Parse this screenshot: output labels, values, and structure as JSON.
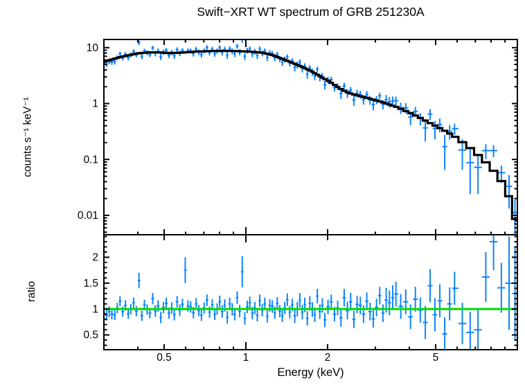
{
  "chart_data": {
    "type": "scatter",
    "title": "Swift−XRT WT spectrum of GRB 251230A",
    "xlabel": "Energy (keV)",
    "x_scale": "log",
    "x_range": [
      0.3,
      10
    ],
    "x_major_ticks": [
      {
        "value": 0.5,
        "label": "0.5"
      },
      {
        "value": 1,
        "label": "1"
      },
      {
        "value": 2,
        "label": "2"
      },
      {
        "value": 5,
        "label": "5"
      }
    ],
    "x_minor_ticks": [
      0.4,
      0.6,
      0.7,
      0.8,
      0.9,
      3,
      4,
      6,
      7,
      8,
      9
    ],
    "legend": "none",
    "grid": "off",
    "panels": {
      "spectrum": {
        "ylabel": "counts s⁻¹ keV⁻¹",
        "y_scale": "log",
        "y_range": [
          0.0045,
          14
        ],
        "y_major_ticks": [
          {
            "value": 10,
            "label": "10"
          },
          {
            "value": 1,
            "label": "1"
          },
          {
            "value": 0.1,
            "label": "0.1"
          },
          {
            "value": 0.01,
            "label": "0.01"
          }
        ],
        "data_color": "#0D84FF",
        "model_color": "#000000",
        "model_curve": [
          [
            0.3,
            5.6
          ],
          [
            0.35,
            6.9
          ],
          [
            0.4,
            7.9
          ],
          [
            0.44,
            8.25
          ],
          [
            0.48,
            8.2
          ],
          [
            0.52,
            8.0
          ],
          [
            0.57,
            8.1
          ],
          [
            0.65,
            8.5
          ],
          [
            0.75,
            8.7
          ],
          [
            0.85,
            8.75
          ],
          [
            0.95,
            8.65
          ],
          [
            1.05,
            8.45
          ],
          [
            1.15,
            8.1
          ],
          [
            1.25,
            7.4
          ],
          [
            1.35,
            6.4
          ],
          [
            1.45,
            5.6
          ],
          [
            1.55,
            4.9
          ],
          [
            1.65,
            4.3
          ],
          [
            1.75,
            3.75
          ],
          [
            1.85,
            3.2
          ],
          [
            1.95,
            2.75
          ],
          [
            2.05,
            2.4
          ],
          [
            2.15,
            2.05
          ],
          [
            2.25,
            1.8
          ],
          [
            2.35,
            1.6
          ],
          [
            2.5,
            1.45
          ],
          [
            2.7,
            1.32
          ],
          [
            2.9,
            1.2
          ],
          [
            3.1,
            1.1
          ],
          [
            3.3,
            1.0
          ],
          [
            3.55,
            0.88
          ],
          [
            3.8,
            0.77
          ],
          [
            4.1,
            0.65
          ],
          [
            4.4,
            0.55
          ],
          [
            4.8,
            0.44
          ],
          [
            5.2,
            0.36
          ],
          [
            5.6,
            0.295
          ],
          [
            6.1,
            0.225
          ],
          [
            6.6,
            0.17
          ],
          [
            7.1,
            0.125
          ],
          [
            7.6,
            0.092
          ],
          [
            8.1,
            0.066
          ],
          [
            8.6,
            0.046
          ],
          [
            9.1,
            0.03
          ],
          [
            9.55,
            0.016
          ],
          [
            9.9,
            0.0068
          ]
        ]
      },
      "ratio": {
        "ylabel": "ratio",
        "y_scale": "linear",
        "y_range": [
          0.215,
          2.435
        ],
        "y_major_ticks": [
          {
            "value": 0.5,
            "label": "0.5"
          },
          {
            "value": 1,
            "label": "1"
          },
          {
            "value": 1.5,
            "label": "1.5"
          },
          {
            "value": 2,
            "label": "2"
          }
        ],
        "data_color": "#0D84FF",
        "reference_line": {
          "value": 1,
          "color": "#00DF00"
        }
      }
    },
    "bins_format": [
      "energy_keV",
      "ratio_data_over_model",
      "relative_error"
    ],
    "bins": [
      [
        0.3,
        0.92,
        0.1
      ],
      [
        0.307,
        0.88,
        0.1
      ],
      [
        0.314,
        0.95,
        0.1
      ],
      [
        0.321,
        0.9,
        0.1
      ],
      [
        0.329,
        0.89,
        0.1
      ],
      [
        0.336,
        1.02,
        0.1
      ],
      [
        0.344,
        1.15,
        0.1
      ],
      [
        0.352,
        0.95,
        0.1
      ],
      [
        0.36,
        1.07,
        0.1
      ],
      [
        0.369,
        0.91,
        0.1
      ],
      [
        0.377,
        1.0,
        0.1
      ],
      [
        0.386,
        1.12,
        0.1
      ],
      [
        0.395,
        0.96,
        0.1
      ],
      [
        0.404,
        1.55,
        0.15
      ],
      [
        0.414,
        0.87,
        0.1
      ],
      [
        0.423,
        1.08,
        0.1
      ],
      [
        0.433,
        0.99,
        0.1
      ],
      [
        0.443,
        0.92,
        0.1
      ],
      [
        0.454,
        1.2,
        0.11
      ],
      [
        0.464,
        0.96,
        0.11
      ],
      [
        0.475,
        1.06,
        0.11
      ],
      [
        0.486,
        0.84,
        0.11
      ],
      [
        0.497,
        1.03,
        0.11
      ],
      [
        0.509,
        1.11,
        0.11
      ],
      [
        0.521,
        0.92,
        0.11
      ],
      [
        0.533,
        1.02,
        0.11
      ],
      [
        0.545,
        0.89,
        0.11
      ],
      [
        0.558,
        1.14,
        0.11
      ],
      [
        0.571,
        0.98,
        0.11
      ],
      [
        0.584,
        1.09,
        0.11
      ],
      [
        0.598,
        1.75,
        0.25
      ],
      [
        0.612,
        1.06,
        0.11
      ],
      [
        0.626,
        1.04,
        0.11
      ],
      [
        0.641,
        0.93,
        0.11
      ],
      [
        0.656,
        1.1,
        0.11
      ],
      [
        0.671,
        0.97,
        0.11
      ],
      [
        0.686,
        0.88,
        0.11
      ],
      [
        0.702,
        1.02,
        0.11
      ],
      [
        0.719,
        1.17,
        0.11
      ],
      [
        0.735,
        0.94,
        0.11
      ],
      [
        0.752,
        1.08,
        0.11
      ],
      [
        0.768,
        0.9,
        0.11
      ],
      [
        0.784,
        1.0,
        0.11
      ],
      [
        0.801,
        1.14,
        0.12
      ],
      [
        0.818,
        0.95,
        0.12
      ],
      [
        0.836,
        1.07,
        0.12
      ],
      [
        0.854,
        0.84,
        0.12
      ],
      [
        0.872,
        1.1,
        0.12
      ],
      [
        0.891,
        0.99,
        0.12
      ],
      [
        0.91,
        0.9,
        0.12
      ],
      [
        0.929,
        1.22,
        0.12
      ],
      [
        0.949,
        0.96,
        0.12
      ],
      [
        0.97,
        1.72,
        0.3
      ],
      [
        0.991,
        0.82,
        0.12
      ],
      [
        1.012,
        1.04,
        0.12
      ],
      [
        1.034,
        1.12,
        0.12
      ],
      [
        1.056,
        0.92,
        0.12
      ],
      [
        1.079,
        1.02,
        0.12
      ],
      [
        1.102,
        0.88,
        0.12
      ],
      [
        1.125,
        1.16,
        0.12
      ],
      [
        1.149,
        0.98,
        0.12
      ],
      [
        1.174,
        1.1,
        0.12
      ],
      [
        1.199,
        0.86,
        0.12
      ],
      [
        1.225,
        1.07,
        0.12
      ],
      [
        1.251,
        1.05,
        0.12
      ],
      [
        1.278,
        0.93,
        0.12
      ],
      [
        1.305,
        1.11,
        0.12
      ],
      [
        1.333,
        0.96,
        0.12
      ],
      [
        1.362,
        0.87,
        0.12
      ],
      [
        1.391,
        1.02,
        0.12
      ],
      [
        1.421,
        1.18,
        0.12
      ],
      [
        1.451,
        0.94,
        0.12
      ],
      [
        1.482,
        1.08,
        0.12
      ],
      [
        1.514,
        0.87,
        0.14
      ],
      [
        1.547,
        1.0,
        0.14
      ],
      [
        1.58,
        1.17,
        0.14
      ],
      [
        1.614,
        0.94,
        0.14
      ],
      [
        1.648,
        1.08,
        0.14
      ],
      [
        1.684,
        0.82,
        0.14
      ],
      [
        1.72,
        1.11,
        0.14
      ],
      [
        1.757,
        0.99,
        0.14
      ],
      [
        1.794,
        0.89,
        0.14
      ],
      [
        1.833,
        1.25,
        0.14
      ],
      [
        1.872,
        0.95,
        0.14
      ],
      [
        1.912,
        1.07,
        0.14
      ],
      [
        1.953,
        0.79,
        0.14
      ],
      [
        2.007,
        1.04,
        0.14
      ],
      [
        2.063,
        1.14,
        0.14
      ],
      [
        2.12,
        0.9,
        0.14
      ],
      [
        2.179,
        1.02,
        0.14
      ],
      [
        2.24,
        0.83,
        0.17
      ],
      [
        2.302,
        1.22,
        0.17
      ],
      [
        2.366,
        0.97,
        0.17
      ],
      [
        2.432,
        1.14,
        0.17
      ],
      [
        2.499,
        0.8,
        0.17
      ],
      [
        2.569,
        1.09,
        0.17
      ],
      [
        2.64,
        1.07,
        0.17
      ],
      [
        2.713,
        0.9,
        0.17
      ],
      [
        2.789,
        1.15,
        0.17
      ],
      [
        2.866,
        0.95,
        0.17
      ],
      [
        2.946,
        0.81,
        0.17
      ],
      [
        3.028,
        1.03,
        0.17
      ],
      [
        3.112,
        1.26,
        0.17
      ],
      [
        3.198,
        0.92,
        0.17
      ],
      [
        3.287,
        1.17,
        0.24
      ],
      [
        3.379,
        1.12,
        0.24
      ],
      [
        3.473,
        1.22,
        0.24
      ],
      [
        3.57,
        1.29,
        0.24
      ],
      [
        3.72,
        1.05,
        0.24
      ],
      [
        3.88,
        1.14,
        0.24
      ],
      [
        4.04,
        0.85,
        0.24
      ],
      [
        4.21,
        1.19,
        0.24
      ],
      [
        4.39,
        0.98,
        0.24
      ],
      [
        4.58,
        0.74,
        0.32
      ],
      [
        4.77,
        1.45,
        0.32
      ],
      [
        4.97,
        0.89,
        0.32
      ],
      [
        5.18,
        1.16,
        0.32
      ],
      [
        5.4,
        0.52,
        0.32
      ],
      [
        5.63,
        1.1,
        0.32
      ],
      [
        5.87,
        1.4,
        0.32
      ],
      [
        6.27,
        0.72,
        0.4
      ],
      [
        6.7,
        0.55,
        0.4
      ],
      [
        7.16,
        0.6,
        0.4
      ],
      [
        7.65,
        1.62,
        0.48
      ],
      [
        8.17,
        2.3,
        0.55
      ],
      [
        8.73,
        1.41,
        0.48
      ],
      [
        9.32,
        1.5,
        0.9
      ],
      [
        9.8,
        1.3,
        0.9
      ]
    ]
  }
}
